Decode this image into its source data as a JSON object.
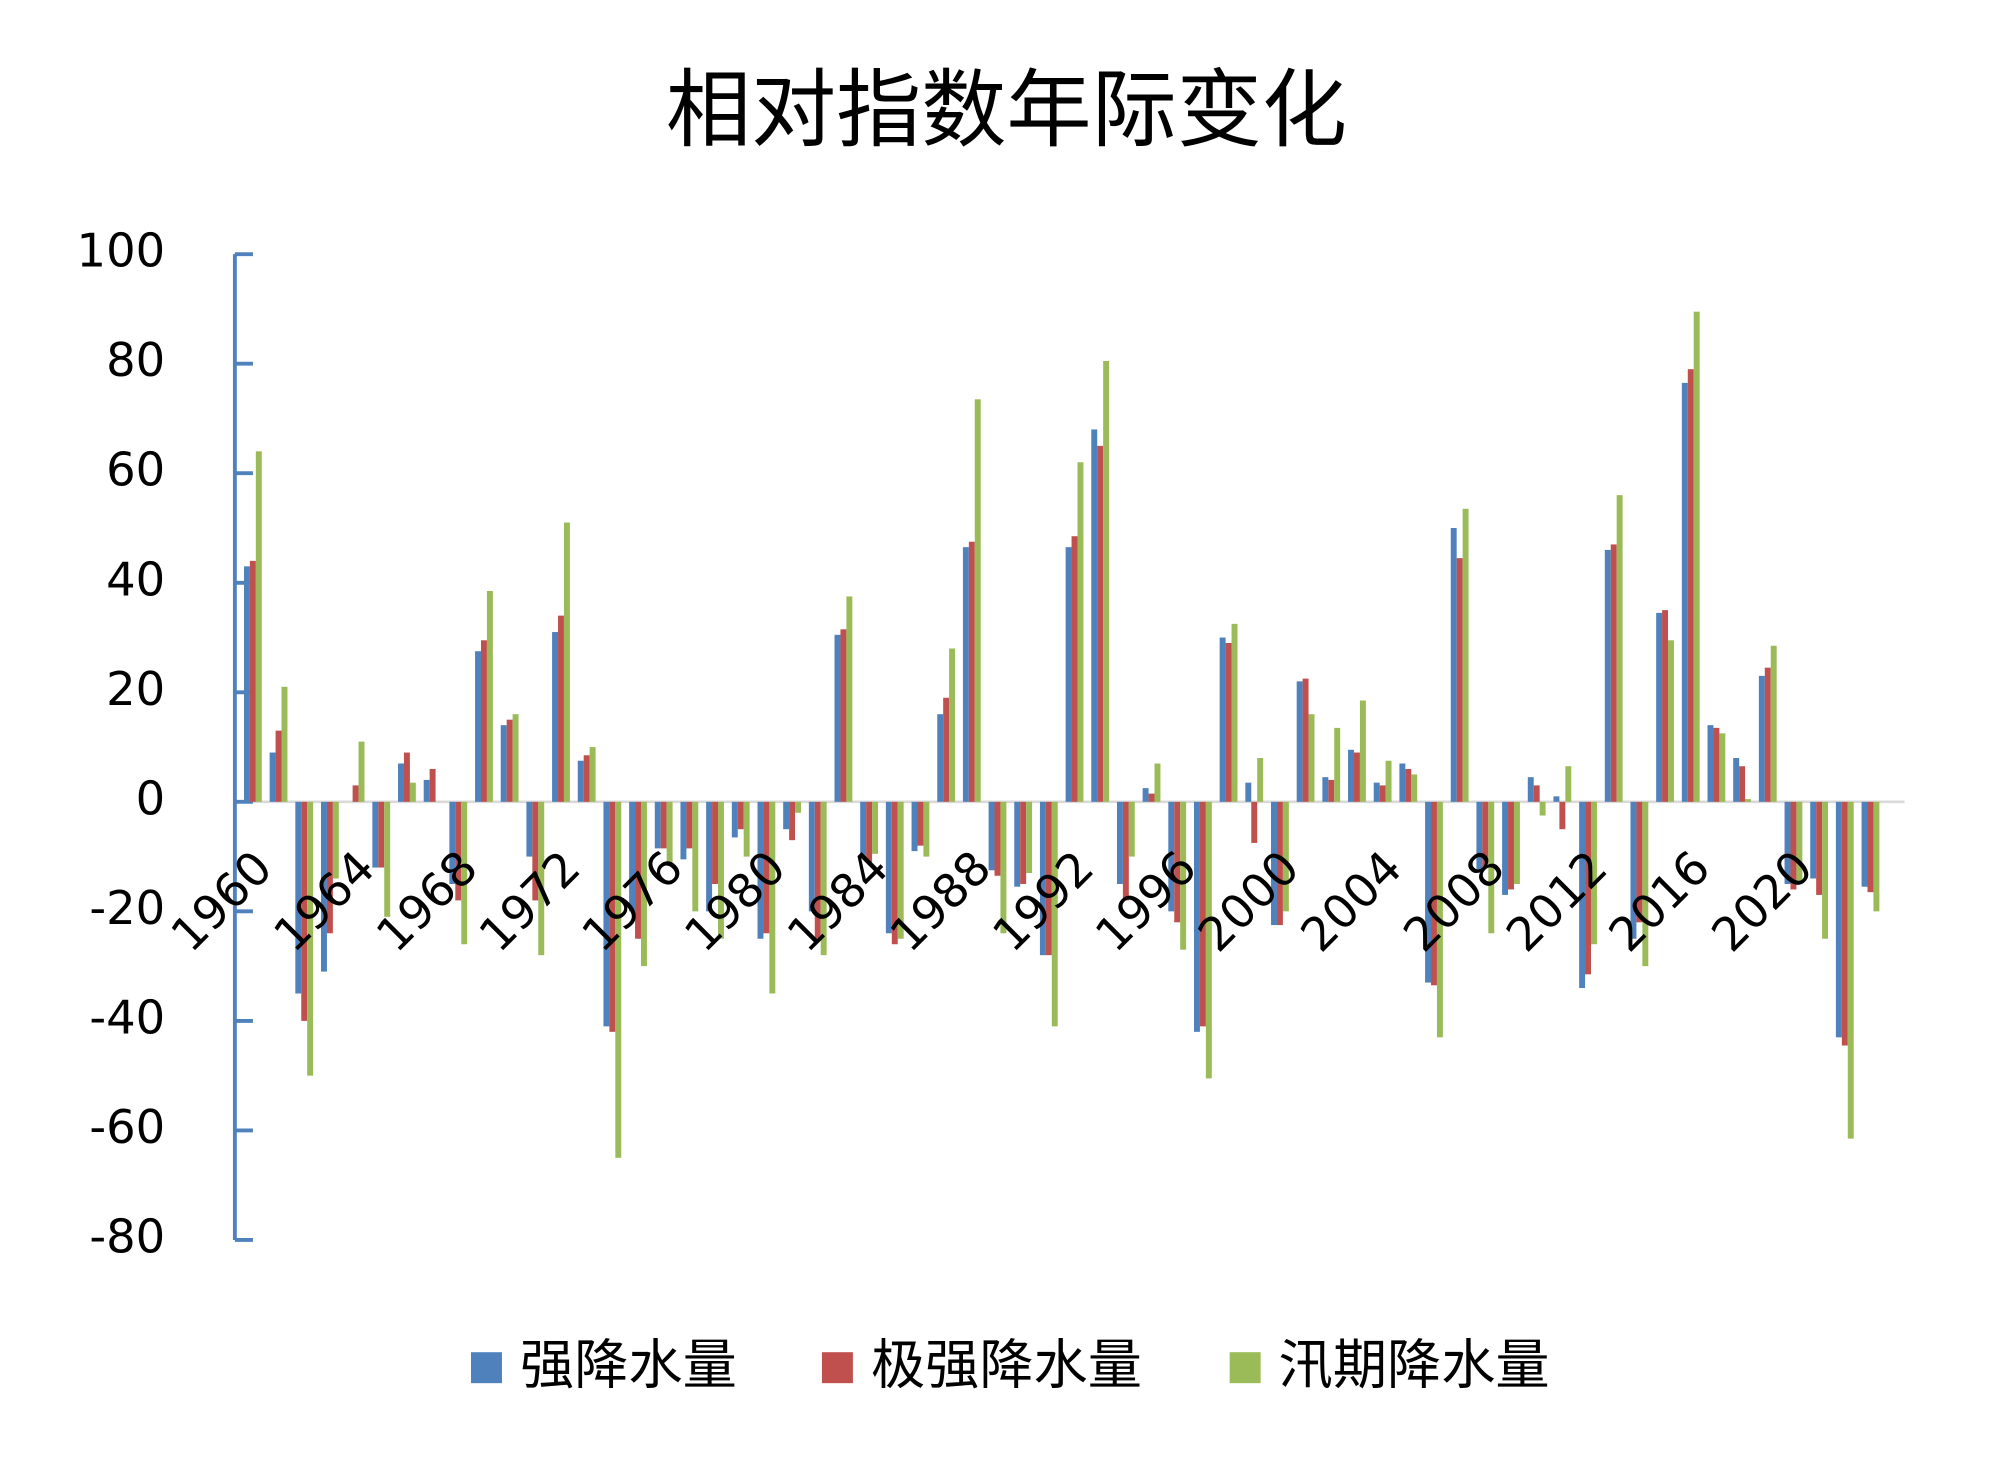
{
  "chart_data": {
    "type": "bar",
    "title": "相对指数年际变化",
    "categories": [
      "1960",
      null,
      null,
      null,
      "1964",
      null,
      null,
      null,
      "1968",
      null,
      null,
      null,
      "1972",
      null,
      null,
      null,
      "1976",
      null,
      null,
      null,
      "1980",
      null,
      null,
      null,
      "1984",
      null,
      null,
      null,
      "1988",
      null,
      null,
      null,
      "1992",
      null,
      null,
      null,
      "1996",
      null,
      null,
      null,
      "2000",
      null,
      null,
      null,
      "2004",
      null,
      null,
      null,
      "2008",
      null,
      null,
      null,
      "2012",
      null,
      null,
      null,
      "2016",
      null,
      null,
      null,
      "2020",
      null,
      null,
      null
    ],
    "series": [
      {
        "name": "强降水量",
        "color": "#4f81bd",
        "values": [
          43,
          9,
          -35,
          -31,
          0,
          -12,
          7,
          4,
          -15,
          27.5,
          14,
          -10,
          31,
          7.5,
          -41,
          -20,
          -8.5,
          -10.5,
          -20,
          -6.5,
          -25,
          -5,
          -20,
          30.5,
          -10,
          -24,
          -9,
          16,
          46.5,
          -12.5,
          -15.5,
          -28,
          46.5,
          68,
          -15,
          2.5,
          -20,
          -42,
          30,
          3.5,
          -22.5,
          22,
          4.5,
          9.5,
          3.5,
          7,
          -33,
          50,
          -13,
          -17,
          4.5,
          1,
          -34,
          46,
          -25,
          34.5,
          76.5,
          14,
          8,
          23,
          -15,
          -14,
          -43,
          -15.5
        ]
      },
      {
        "name": "极强降水量",
        "color": "#c0504d",
        "values": [
          44,
          13,
          -40,
          -24,
          3,
          -12,
          9,
          6,
          -18,
          29.5,
          15,
          -18,
          34,
          8.5,
          -42,
          -25,
          -8.5,
          -8.5,
          -15,
          -5,
          -24,
          -7,
          -25,
          31.5,
          -11,
          -26,
          -8,
          19,
          47.5,
          -13.5,
          -15,
          -28,
          48.5,
          65,
          -18,
          1.5,
          -22,
          -41,
          29,
          -7.5,
          -22.5,
          22.5,
          4,
          9,
          3,
          6,
          -33.5,
          44.5,
          -12,
          -16,
          3,
          -5,
          -31.5,
          47,
          -22,
          35,
          79,
          13.5,
          6.5,
          24.5,
          -16,
          -17,
          -44.5,
          -16.5
        ]
      },
      {
        "name": "汛期降水量",
        "color": "#9bbb59",
        "values": [
          64,
          21,
          -50,
          -14,
          11,
          -21,
          3.5,
          0,
          -26,
          38.5,
          16,
          -28,
          51,
          10,
          -65,
          -30,
          -11.5,
          -20,
          -25,
          -10,
          -35,
          -2,
          -28,
          37.5,
          -9.5,
          -25,
          -10,
          28,
          73.5,
          -24,
          -13,
          -41,
          62,
          80.5,
          -10,
          7,
          -27,
          -50.5,
          32.5,
          8,
          -20,
          16,
          13.5,
          18.5,
          7.5,
          5,
          -43,
          53.5,
          -24,
          -15,
          -2.5,
          6.5,
          -26,
          56,
          -30,
          29.5,
          89.5,
          12.5,
          0.5,
          28.5,
          -15,
          -25,
          -61.5,
          -20
        ]
      }
    ],
    "ylim": [
      -80,
      100
    ],
    "yticks": [
      -80,
      -60,
      -40,
      -20,
      0,
      20,
      40,
      60,
      80,
      100
    ]
  }
}
